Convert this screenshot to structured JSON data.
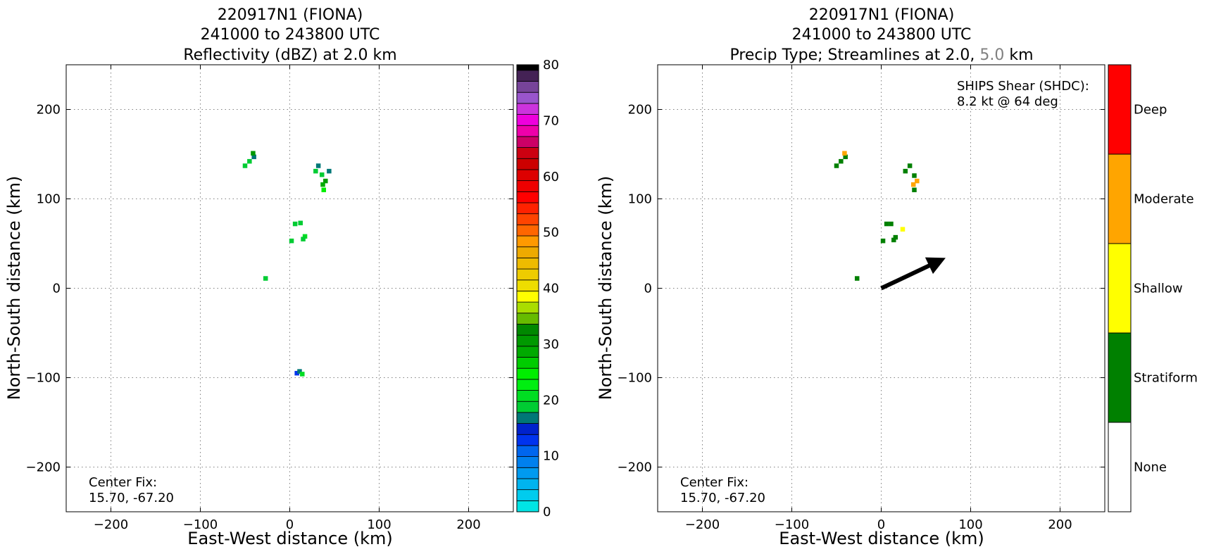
{
  "chart_data": [
    {
      "type": "heatmap",
      "title_lines": [
        "220917N1 (FIONA)",
        "241000 to 243800 UTC",
        "Reflectivity (dBZ) at 2.0 km"
      ],
      "xlabel": "East-West distance (km)",
      "ylabel": "North-South distance (km)",
      "xlim": [
        -250,
        250
      ],
      "ylim": [
        -250,
        250
      ],
      "xticks": [
        "−200",
        "−100",
        "0",
        "100",
        "200"
      ],
      "xtick_values": [
        -200,
        -100,
        0,
        100,
        200
      ],
      "yticks": [
        "200",
        "100",
        "0",
        "−100",
        "−200"
      ],
      "ytick_values": [
        200,
        100,
        0,
        -100,
        -200
      ],
      "grid": true,
      "annotation": [
        "Center Fix:",
        "15.70, -67.20"
      ],
      "colorbar": {
        "vmin": 0,
        "vmax": 80,
        "step": 2.5,
        "tick_values": [
          0,
          10,
          20,
          30,
          40,
          50,
          60,
          70,
          80
        ],
        "tick_labels": [
          "0",
          "10",
          "20",
          "30",
          "40",
          "50",
          "60",
          "70",
          "80"
        ],
        "colors": [
          "#00e5e5",
          "#00ccee",
          "#00b4ef",
          "#009aef",
          "#0080ee",
          "#0066ee",
          "#0033ee",
          "#0022cc",
          "#007777",
          "#00cc33",
          "#00dd22",
          "#00ee11",
          "#00ee00",
          "#00cc00",
          "#00aa00",
          "#009900",
          "#008800",
          "#66bb00",
          "#aadd00",
          "#ffff00",
          "#eedd00",
          "#eecc00",
          "#eebb00",
          "#eeaa00",
          "#ff9900",
          "#ff6600",
          "#ff4400",
          "#ff2200",
          "#ff0000",
          "#ee0000",
          "#dd0000",
          "#cc0000",
          "#cc0011",
          "#cc0066",
          "#ee00aa",
          "#ee00dd",
          "#cc33dd",
          "#9955cc",
          "#774499",
          "#442255",
          "#000000"
        ]
      },
      "echoes": [
        {
          "x": -45,
          "y": 142,
          "value": 24
        },
        {
          "x": -40,
          "y": 147,
          "value": 22
        },
        {
          "x": -41,
          "y": 151,
          "value": 38
        },
        {
          "x": -50,
          "y": 137,
          "value": 24
        },
        {
          "x": 29,
          "y": 131,
          "value": 24
        },
        {
          "x": 32,
          "y": 137,
          "value": 20
        },
        {
          "x": 36,
          "y": 127,
          "value": 24
        },
        {
          "x": 40,
          "y": 120,
          "value": 38
        },
        {
          "x": 37,
          "y": 116,
          "value": 36
        },
        {
          "x": 44,
          "y": 131,
          "value": 20
        },
        {
          "x": 38,
          "y": 110,
          "value": 30
        },
        {
          "x": 6,
          "y": 72,
          "value": 24
        },
        {
          "x": 12,
          "y": 73,
          "value": 24
        },
        {
          "x": 17,
          "y": 58,
          "value": 26
        },
        {
          "x": 15,
          "y": 55,
          "value": 24
        },
        {
          "x": 2,
          "y": 53,
          "value": 24
        },
        {
          "x": -27,
          "y": 11,
          "value": 24
        },
        {
          "x": 8,
          "y": -95,
          "value": 16
        },
        {
          "x": 11,
          "y": -93,
          "value": 20
        },
        {
          "x": 14,
          "y": -96,
          "value": 26
        }
      ]
    },
    {
      "type": "heatmap",
      "title_lines": [
        "220917N1 (FIONA)",
        "241000 to 243800 UTC"
      ],
      "title_line3_parts": [
        "Precip Type; Streamlines at 2.0, ",
        "5.0",
        " km"
      ],
      "title_line3_colors": [
        "#000000",
        "#808080",
        "#000000"
      ],
      "xlabel": "East-West distance (km)",
      "ylabel": "North-South distance (km)",
      "xlim": [
        -250,
        250
      ],
      "ylim": [
        -250,
        250
      ],
      "xticks": [
        "−200",
        "−100",
        "0",
        "100",
        "200"
      ],
      "xtick_values": [
        -200,
        -100,
        0,
        100,
        200
      ],
      "yticks": [
        "200",
        "100",
        "0",
        "−100",
        "−200"
      ],
      "ytick_values": [
        200,
        100,
        0,
        -100,
        -200
      ],
      "grid": true,
      "annotation": [
        "Center Fix:",
        "15.70, -67.20"
      ],
      "shear_text": [
        "SHIPS Shear (SHDC):",
        "8.2 kt @ 64 deg"
      ],
      "shear_vector": {
        "speed_kt": 8.2,
        "direction_deg": 64,
        "from": [
          0,
          0
        ],
        "to": [
          72,
          34
        ]
      },
      "categories": [
        "None",
        "Stratiform",
        "Shallow",
        "Moderate",
        "Deep"
      ],
      "category_colors": {
        "None": "#ffffff",
        "Stratiform": "#008000",
        "Shallow": "#ffff00",
        "Moderate": "#ffa500",
        "Deep": "#ff0000"
      },
      "echoes": [
        {
          "x": -45,
          "y": 142,
          "category": "Stratiform"
        },
        {
          "x": -40,
          "y": 147,
          "category": "Stratiform"
        },
        {
          "x": -41,
          "y": 151,
          "category": "Moderate"
        },
        {
          "x": -50,
          "y": 137,
          "category": "Stratiform"
        },
        {
          "x": 27,
          "y": 131,
          "category": "Stratiform"
        },
        {
          "x": 32,
          "y": 137,
          "category": "Stratiform"
        },
        {
          "x": 37,
          "y": 126,
          "category": "Stratiform"
        },
        {
          "x": 40,
          "y": 120,
          "category": "Moderate"
        },
        {
          "x": 36,
          "y": 116,
          "category": "Moderate"
        },
        {
          "x": 37,
          "y": 110,
          "category": "Stratiform"
        },
        {
          "x": 6,
          "y": 72,
          "category": "Stratiform"
        },
        {
          "x": 11,
          "y": 72,
          "category": "Stratiform"
        },
        {
          "x": 24,
          "y": 66,
          "category": "Shallow"
        },
        {
          "x": 16,
          "y": 57,
          "category": "Stratiform"
        },
        {
          "x": 14,
          "y": 54,
          "category": "Stratiform"
        },
        {
          "x": 2,
          "y": 53,
          "category": "Stratiform"
        },
        {
          "x": -27,
          "y": 11,
          "category": "Stratiform"
        }
      ]
    }
  ]
}
